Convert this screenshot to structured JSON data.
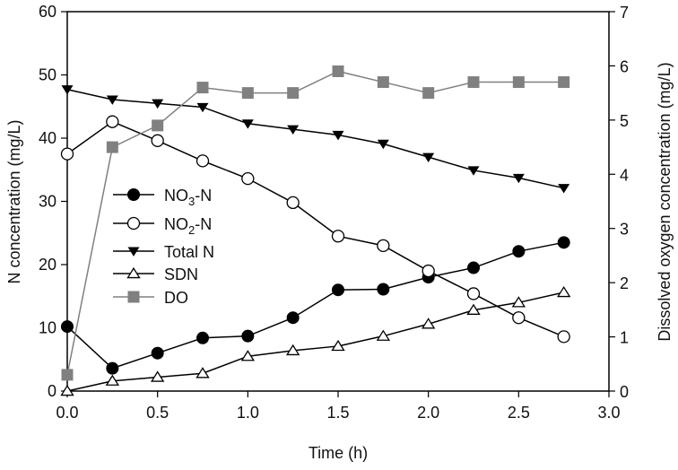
{
  "chart_data": {
    "type": "line",
    "xlabel": "Time (h)",
    "ylabel": "N concentration (mg/L)",
    "y2label": "Dissolved oxygen concentration (mg/L)",
    "xlim": [
      0,
      3
    ],
    "ylim": [
      0,
      60
    ],
    "y2lim": [
      0,
      7
    ],
    "xticks": [
      "0.0",
      "0.5",
      "1.0",
      "1.5",
      "2.0",
      "2.5",
      "3.0"
    ],
    "yticks": [
      "0",
      "10",
      "20",
      "30",
      "40",
      "50",
      "60"
    ],
    "y2ticks": [
      "0",
      "1",
      "2",
      "3",
      "4",
      "5",
      "6",
      "7"
    ],
    "grid": false,
    "legend_placement": "center-left",
    "x": [
      0,
      0.25,
      0.5,
      0.75,
      1.0,
      1.25,
      1.5,
      1.75,
      2.0,
      2.25,
      2.5,
      2.75
    ],
    "series": [
      {
        "name": "NO3-N",
        "sub": "3",
        "marker": "filled-circle",
        "color": "#000000",
        "axis": "left",
        "values": [
          10.2,
          3.6,
          6.0,
          8.4,
          8.7,
          11.6,
          16.0,
          16.1,
          18.0,
          19.5,
          22.1,
          23.5
        ]
      },
      {
        "name": "NO2-N",
        "sub": "2",
        "marker": "open-circle",
        "color": "#000000",
        "axis": "left",
        "values": [
          37.5,
          42.6,
          39.6,
          36.4,
          33.6,
          29.8,
          24.5,
          23.0,
          19.0,
          15.4,
          11.6,
          8.6
        ]
      },
      {
        "name": "Total N",
        "marker": "filled-down-triangle",
        "color": "#000000",
        "axis": "left",
        "values": [
          47.7,
          46.1,
          45.5,
          44.9,
          42.3,
          41.4,
          40.5,
          39.1,
          37.0,
          34.9,
          33.7,
          32.1
        ]
      },
      {
        "name": "SDN",
        "marker": "open-up-triangle",
        "color": "#000000",
        "axis": "left",
        "values": [
          0,
          1.6,
          2.2,
          2.8,
          5.5,
          6.4,
          7.1,
          8.7,
          10.6,
          12.8,
          14.0,
          15.6
        ]
      },
      {
        "name": "DO",
        "marker": "filled-square",
        "color": "#808080",
        "axis": "right",
        "values": [
          0.3,
          4.5,
          4.9,
          5.6,
          5.5,
          5.5,
          5.9,
          5.7,
          5.5,
          5.7,
          5.7,
          5.7
        ]
      }
    ]
  }
}
